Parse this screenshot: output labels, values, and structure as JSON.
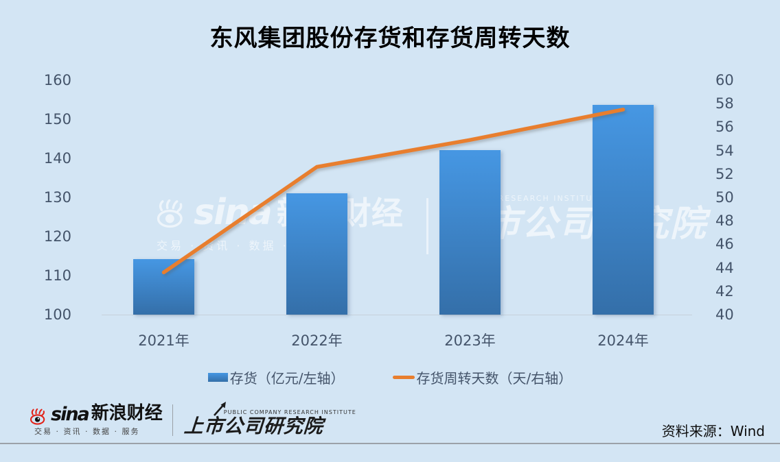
{
  "title": "东风集团股份存货和存货周转天数",
  "chart_data": {
    "type": "combo",
    "title": "东风集团股份存货和存货周转天数",
    "categories": [
      "2021年",
      "2022年",
      "2023年",
      "2024年"
    ],
    "series": [
      {
        "name": "存货（亿元/左轴）",
        "type": "bar",
        "axis": "left",
        "values": [
          114.2,
          131.0,
          142.1,
          153.6
        ]
      },
      {
        "name": "存货周转天数（天/右轴）",
        "type": "line",
        "axis": "right",
        "values": [
          43.6,
          52.6,
          54.9,
          57.5
        ]
      }
    ],
    "left_axis": {
      "min": 100,
      "max": 160,
      "step": 10,
      "ticks": [
        "160",
        "150",
        "140",
        "130",
        "120",
        "110",
        "100"
      ]
    },
    "right_axis": {
      "min": 40,
      "max": 60,
      "step": 2,
      "ticks": [
        "60",
        "58",
        "56",
        "54",
        "52",
        "50",
        "48",
        "46",
        "44",
        "42",
        "40"
      ]
    },
    "grid": false,
    "legend_position": "bottom"
  },
  "legend": {
    "bar_label": "存货（亿元/左轴）",
    "line_label": "存货周转天数（天/右轴）"
  },
  "watermark": {
    "sina": "sina",
    "cn": "新浪财经",
    "tagline": "交易 · 资讯 · 数据 · 服务",
    "institute_en": "COMPANY RESEARCH INSTITUTE",
    "institute": "上市公司研究院"
  },
  "footer": {
    "sina": "sina",
    "finance": "新浪财经",
    "tagline": "交易 · 资讯 · 数据 · 服务",
    "institute_en": "PUBLIC COMPANY RESEARCH INSTITUTE",
    "institute": "上市公司研究院",
    "source": "资料来源：Wind"
  },
  "colors": {
    "background": "#d3e5f4",
    "bar_top": "#4697e3",
    "bar_bottom": "#346fa9",
    "line": "#e87e2e",
    "axis_text": "#44546a",
    "title_text": "#000000",
    "baseline": "#c6d0da",
    "divider": "#9ba1a8",
    "sina_red": "#e2231a"
  }
}
